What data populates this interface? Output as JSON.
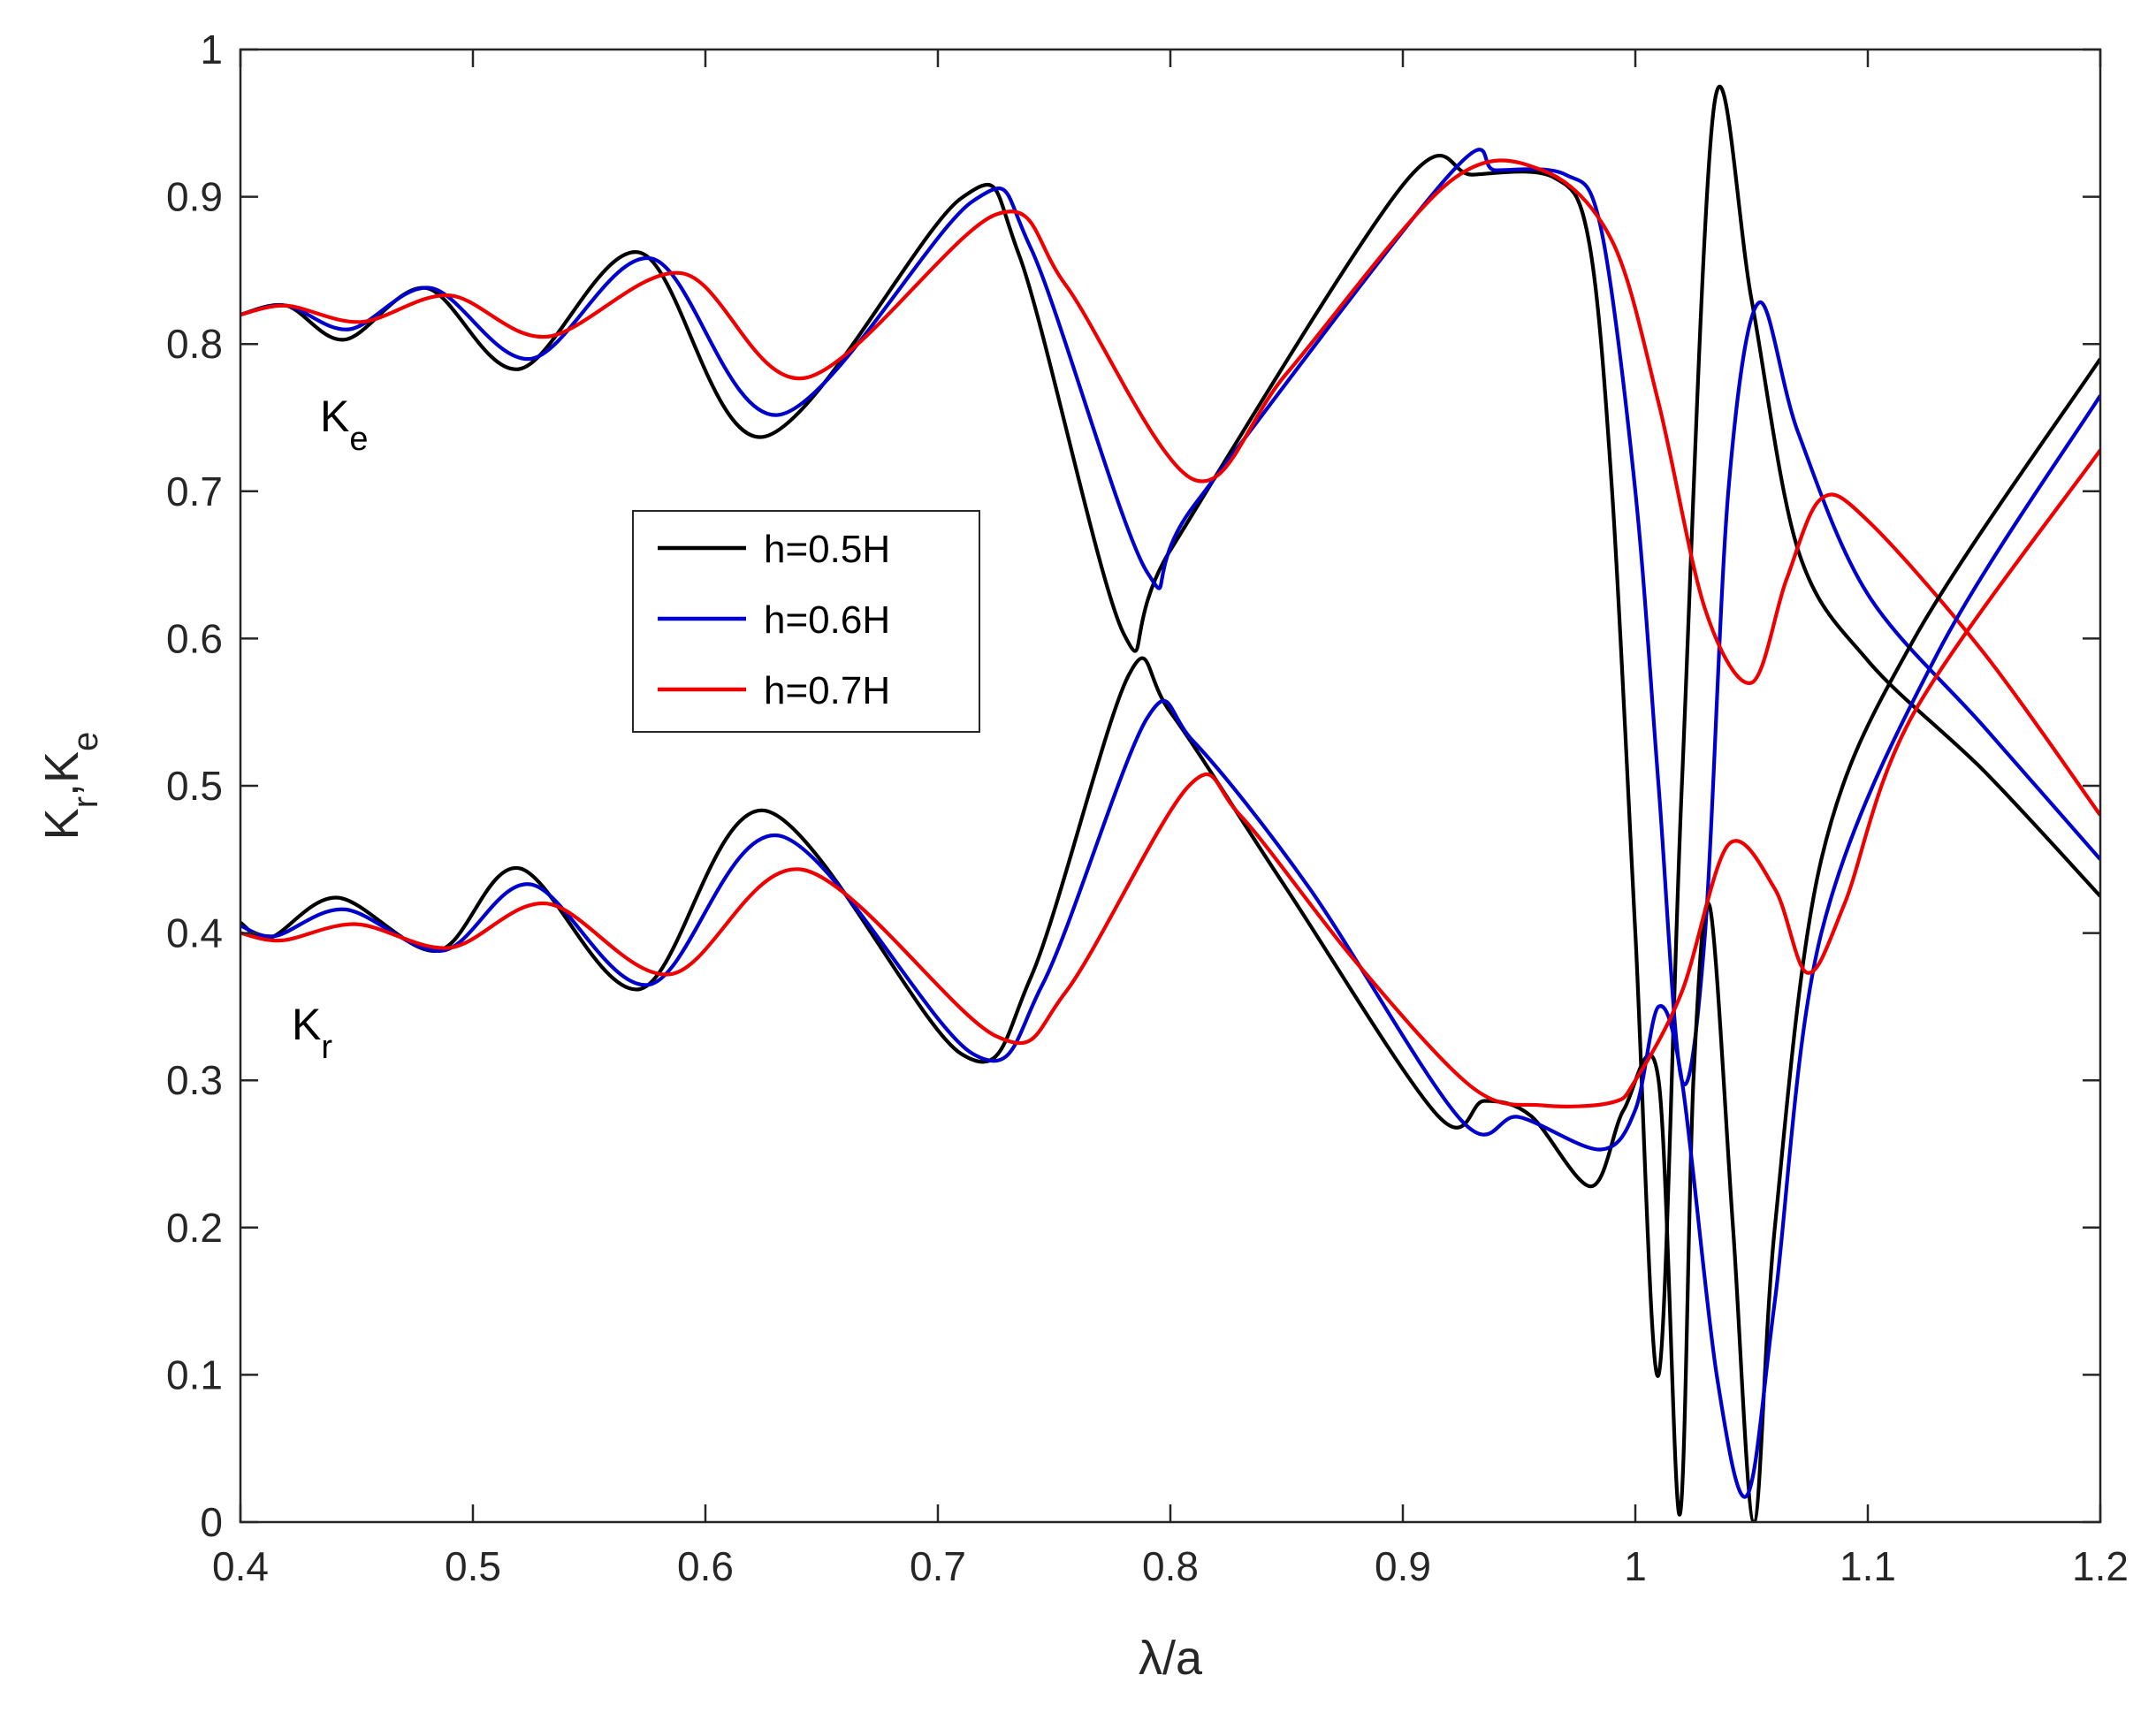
{
  "chart_data": {
    "type": "line",
    "xlabel": "λ/a",
    "ylabel": "K_r,K_e",
    "xlim": [
      0.4,
      1.2
    ],
    "ylim": [
      0,
      1
    ],
    "x_ticks": [
      "0.4",
      "0.5",
      "0.6",
      "0.7",
      "0.8",
      "0.9",
      "1",
      "1.1",
      "1.2"
    ],
    "y_ticks": [
      "0",
      "0.1",
      "0.2",
      "0.3",
      "0.4",
      "0.5",
      "0.6",
      "0.7",
      "0.8",
      "0.9",
      "1"
    ],
    "grid": false,
    "box": true,
    "legend_position": "center-left",
    "annotations": [
      {
        "base": "K",
        "sub": "e"
      },
      {
        "base": "K",
        "sub": "r"
      }
    ],
    "series": [
      {
        "name": "h=0.5H",
        "color": "#000000",
        "quantity": "K_e",
        "x": [
          0.4,
          0.42,
          0.445,
          0.48,
          0.52,
          0.572,
          0.625,
          0.71,
          0.735,
          0.78,
          0.8,
          0.9,
          0.93,
          0.965,
          0.98,
          0.99,
          1.0,
          1.01,
          1.02,
          1.034,
          1.05,
          1.07,
          1.1,
          1.15,
          1.2
        ],
        "y": [
          0.82,
          0.826,
          0.803,
          0.838,
          0.783,
          0.862,
          0.737,
          0.899,
          0.86,
          0.603,
          0.66,
          0.908,
          0.915,
          0.913,
          0.87,
          0.7,
          0.4,
          0.1,
          0.5,
          0.963,
          0.83,
          0.66,
          0.585,
          0.51,
          0.425
        ]
      },
      {
        "name": "h=0.6H",
        "color": "#0000cd",
        "quantity": "K_e",
        "x": [
          0.4,
          0.42,
          0.447,
          0.482,
          0.525,
          0.577,
          0.632,
          0.715,
          0.74,
          0.79,
          0.81,
          0.92,
          0.94,
          0.97,
          0.985,
          1.0,
          1.01,
          1.02,
          1.03,
          1.04,
          1.053,
          1.07,
          1.1,
          1.15,
          1.2
        ],
        "y": [
          0.82,
          0.826,
          0.81,
          0.838,
          0.79,
          0.858,
          0.752,
          0.897,
          0.865,
          0.645,
          0.69,
          0.915,
          0.918,
          0.915,
          0.88,
          0.7,
          0.5,
          0.3,
          0.4,
          0.7,
          0.828,
          0.74,
          0.63,
          0.54,
          0.45
        ]
      },
      {
        "name": "h=0.7H",
        "color": "#ee0000",
        "quantity": "K_e",
        "x": [
          0.4,
          0.42,
          0.452,
          0.49,
          0.532,
          0.59,
          0.643,
          0.725,
          0.755,
          0.81,
          0.85,
          0.92,
          0.96,
          0.99,
          1.01,
          1.03,
          1.05,
          1.065,
          1.08,
          1.1,
          1.15,
          1.2
        ],
        "y": [
          0.82,
          0.826,
          0.815,
          0.833,
          0.805,
          0.848,
          0.777,
          0.888,
          0.84,
          0.708,
          0.78,
          0.91,
          0.918,
          0.87,
          0.76,
          0.62,
          0.57,
          0.64,
          0.695,
          0.68,
          0.59,
          0.48
        ]
      },
      {
        "name": "h=0.5H",
        "color": "#000000",
        "quantity": "K_r",
        "x": [
          0.4,
          0.413,
          0.442,
          0.485,
          0.52,
          0.572,
          0.626,
          0.71,
          0.74,
          0.782,
          0.8,
          0.85,
          0.915,
          0.935,
          0.955,
          0.981,
          0.995,
          1.01,
          1.019,
          1.025,
          1.032,
          1.042,
          1.051,
          1.06,
          1.08,
          1.12,
          1.2
        ],
        "y": [
          0.407,
          0.397,
          0.424,
          0.388,
          0.444,
          0.362,
          0.483,
          0.318,
          0.37,
          0.575,
          0.55,
          0.43,
          0.276,
          0.286,
          0.276,
          0.228,
          0.28,
          0.3,
          0.005,
          0.3,
          0.418,
          0.2,
          0.0,
          0.2,
          0.45,
          0.6,
          0.79
        ]
      },
      {
        "name": "h=0.6H",
        "color": "#0000cd",
        "quantity": "K_r",
        "x": [
          0.4,
          0.415,
          0.445,
          0.487,
          0.525,
          0.576,
          0.632,
          0.715,
          0.745,
          0.79,
          0.81,
          0.86,
          0.925,
          0.95,
          0.985,
          1.0,
          1.01,
          1.02,
          1.035,
          1.048,
          1.06,
          1.08,
          1.13,
          1.2
        ],
        "y": [
          0.405,
          0.398,
          0.416,
          0.388,
          0.433,
          0.365,
          0.466,
          0.318,
          0.365,
          0.546,
          0.53,
          0.43,
          0.273,
          0.275,
          0.253,
          0.28,
          0.35,
          0.3,
          0.1,
          0.018,
          0.15,
          0.4,
          0.59,
          0.765
        ]
      },
      {
        "name": "h=0.7H",
        "color": "#ee0000",
        "quantity": "K_r",
        "x": [
          0.4,
          0.418,
          0.45,
          0.49,
          0.532,
          0.585,
          0.642,
          0.725,
          0.755,
          0.808,
          0.83,
          0.88,
          0.93,
          0.96,
          0.99,
          1.0,
          1.02,
          1.04,
          1.06,
          1.074,
          1.09,
          1.12,
          1.2
        ],
        "y": [
          0.4,
          0.395,
          0.406,
          0.39,
          0.42,
          0.372,
          0.443,
          0.33,
          0.36,
          0.5,
          0.48,
          0.38,
          0.295,
          0.283,
          0.285,
          0.3,
          0.36,
          0.46,
          0.43,
          0.373,
          0.42,
          0.55,
          0.728
        ]
      }
    ]
  }
}
